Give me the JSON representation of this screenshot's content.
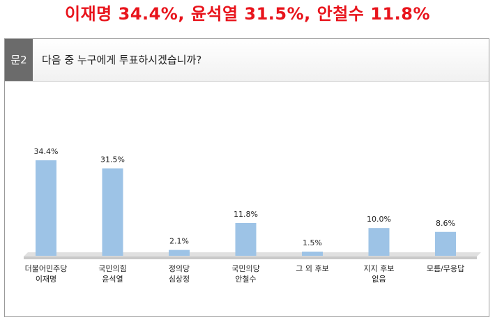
{
  "headline": "이재명 34.4%, 윤석열 31.5%, 안철수 11.8%",
  "question": {
    "number": "문2",
    "text": "다음 중 누구에게 투표하시겠습니까?"
  },
  "chart_data": {
    "type": "bar",
    "categories": [
      [
        "더불어민주당",
        "이재명"
      ],
      [
        "국민의힘",
        "윤석열"
      ],
      [
        "정의당",
        "심상정"
      ],
      [
        "국민의당",
        "안철수"
      ],
      [
        "그 외 후보"
      ],
      [
        "지지 후보",
        "없음"
      ],
      [
        "모름/무응답"
      ]
    ],
    "values": [
      34.4,
      31.5,
      2.1,
      11.8,
      1.5,
      10.0,
      8.6
    ],
    "value_labels": [
      "34.4%",
      "31.5%",
      "2.1%",
      "11.8%",
      "1.5%",
      "10.0%",
      "8.6%"
    ],
    "ylim": [
      0,
      40
    ],
    "grid": false,
    "colors": {
      "bar": "#9dc3e6",
      "headline": "#e8141c",
      "qnum_bg": "#6b6b6b"
    }
  }
}
